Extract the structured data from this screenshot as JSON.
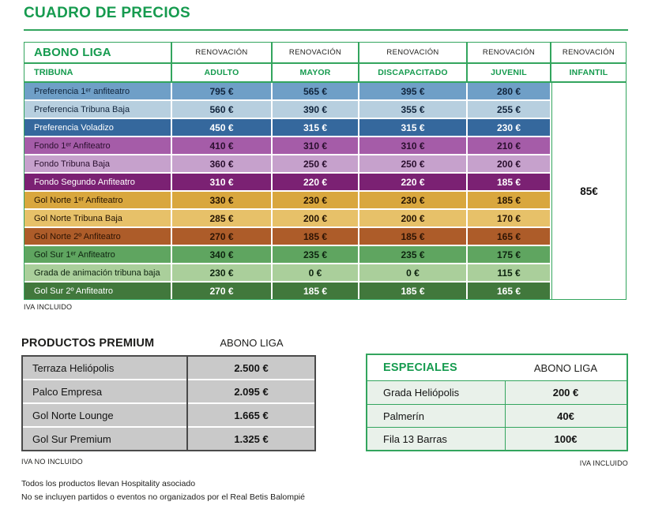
{
  "page_title": "CUADRO DE PRECIOS",
  "palette": {
    "brand_green": "#169b4f",
    "border_green": "#33a55e",
    "premium_cell_gray": "#c9c9c9",
    "premium_border_gray": "#4a4a4a",
    "especiales_row_mint": "#e9f1ea",
    "tones": {
      "blue-mid": {
        "bg": "#6f9fc7",
        "fg": "#10243c"
      },
      "blue-light": {
        "bg": "#b7cfdf",
        "fg": "#10243c"
      },
      "blue-dark": {
        "bg": "#35689d",
        "fg": "#ffffff"
      },
      "purple-mid": {
        "bg": "#a55ca8",
        "fg": "#2a0f2e"
      },
      "purple-light": {
        "bg": "#c6a1cc",
        "fg": "#2a0f2e"
      },
      "purple-dark": {
        "bg": "#7b2173",
        "fg": "#ffffff"
      },
      "gold-mid": {
        "bg": "#d9a73e",
        "fg": "#241302"
      },
      "gold-light": {
        "bg": "#e7c169",
        "fg": "#241302"
      },
      "brown": {
        "bg": "#ad5c29",
        "fg": "#2e1404"
      },
      "green-mid": {
        "bg": "#5fa560",
        "fg": "#0e2410"
      },
      "green-light": {
        "bg": "#aacf9b",
        "fg": "#0e2410"
      },
      "green-dark": {
        "bg": "#41783c",
        "fg": "#ffffff"
      }
    }
  },
  "main_table": {
    "corner_label": "ABONO LIGA",
    "renovation_label": "RENOVACIÓN",
    "row_header_label": "TRIBUNA",
    "columns": [
      "ADULTO",
      "MAYOR",
      "DISCAPACITADO",
      "JUVENIL",
      "INFANTIL"
    ],
    "infantil_price": "85€",
    "rows": [
      {
        "label": "Preferencia 1ᵉʳ anfiteatro",
        "prices": [
          "795 €",
          "565 €",
          "395 €",
          "280 €"
        ],
        "tone": "blue-mid"
      },
      {
        "label": "Preferencia Tribuna Baja",
        "prices": [
          "560 €",
          "390 €",
          "355 €",
          "255 €"
        ],
        "tone": "blue-light"
      },
      {
        "label": "Preferencia Voladizo",
        "prices": [
          "450 €",
          "315 €",
          "315 €",
          "230 €"
        ],
        "tone": "blue-dark"
      },
      {
        "label": "Fondo 1ᵉʳ Anfiteatro",
        "prices": [
          "410 €",
          "310 €",
          "310 €",
          "210 €"
        ],
        "tone": "purple-mid"
      },
      {
        "label": "Fondo Tribuna Baja",
        "prices": [
          "360 €",
          "250 €",
          "250 €",
          "200 €"
        ],
        "tone": "purple-light"
      },
      {
        "label": "Fondo Segundo Anfiteatro",
        "prices": [
          "310 €",
          "220 €",
          "220 €",
          "185 €"
        ],
        "tone": "purple-dark"
      },
      {
        "label": "Gol Norte 1ᵉʳ Anfiteatro",
        "prices": [
          "330 €",
          "230 €",
          "230 €",
          "185 €"
        ],
        "tone": "gold-mid"
      },
      {
        "label": "Gol Norte Tribuna Baja",
        "prices": [
          "285 €",
          "200 €",
          "200 €",
          "170 €"
        ],
        "tone": "gold-light"
      },
      {
        "label": "Gol Norte 2º Anfiteatro",
        "prices": [
          "270 €",
          "185 €",
          "185 €",
          "165 €"
        ],
        "tone": "brown"
      },
      {
        "label": "Gol Sur 1ᵉʳ Anfiteatro",
        "prices": [
          "340 €",
          "235 €",
          "235 €",
          "175 €"
        ],
        "tone": "green-mid"
      },
      {
        "label": "Grada de animación tribuna baja",
        "prices": [
          "230 €",
          "0 €",
          "0 €",
          "115 €"
        ],
        "tone": "green-light"
      },
      {
        "label": "Gol Sur 2º Anfiteatro",
        "prices": [
          "270 €",
          "185 €",
          "185 €",
          "165 €"
        ],
        "tone": "green-dark"
      }
    ],
    "note": "IVA INCLUIDO"
  },
  "premium": {
    "title": "PRODUCTOS PREMIUM",
    "column_label": "ABONO LIGA",
    "rows": [
      {
        "label": "Terraza Heliópolis",
        "price": "2.500 €"
      },
      {
        "label": "Palco Empresa",
        "price": "2.095 €"
      },
      {
        "label": "Gol Norte Lounge",
        "price": "1.665 €"
      },
      {
        "label": "Gol Sur Premium",
        "price": "1.325 €"
      }
    ],
    "note": "IVA NO INCLUIDO"
  },
  "especiales": {
    "title": "ESPECIALES",
    "column_label": "ABONO LIGA",
    "rows": [
      {
        "label": "Grada Heliópolis",
        "price": "200 €"
      },
      {
        "label": "Palmerín",
        "price": "40€"
      },
      {
        "label": "Fila 13 Barras",
        "price": "100€"
      }
    ],
    "note": "IVA INCLUIDO"
  },
  "footnotes": [
    "Todos los productos llevan Hospitality asociado",
    "No se incluyen partidos o eventos no organizados por el Real Betis Balompié"
  ]
}
